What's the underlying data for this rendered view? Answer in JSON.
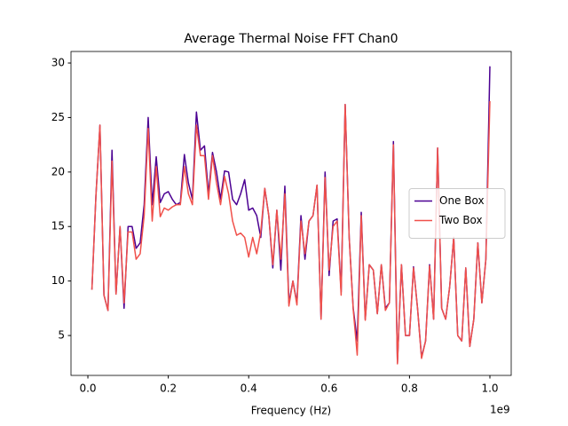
{
  "chart_data": {
    "type": "line",
    "title": "Average Thermal Noise FFT Chan0",
    "x_label": "Frequency (Hz)",
    "x_offset_label": "1e9",
    "x": [
      0.01,
      0.02,
      0.03,
      0.04,
      0.05,
      0.06,
      0.07,
      0.08,
      0.09,
      0.1,
      0.11,
      0.12,
      0.13,
      0.14,
      0.15,
      0.16,
      0.17,
      0.18,
      0.19,
      0.2,
      0.21,
      0.22,
      0.23,
      0.24,
      0.25,
      0.26,
      0.27,
      0.28,
      0.29,
      0.3,
      0.31,
      0.32,
      0.33,
      0.34,
      0.35,
      0.36,
      0.37,
      0.38,
      0.39,
      0.4,
      0.41,
      0.42,
      0.43,
      0.44,
      0.45,
      0.46,
      0.47,
      0.48,
      0.49,
      0.5,
      0.51,
      0.52,
      0.53,
      0.54,
      0.55,
      0.56,
      0.57,
      0.58,
      0.59,
      0.6,
      0.61,
      0.62,
      0.63,
      0.64,
      0.65,
      0.66,
      0.67,
      0.68,
      0.69,
      0.7,
      0.71,
      0.72,
      0.73,
      0.74,
      0.75,
      0.76,
      0.77,
      0.78,
      0.79,
      0.8,
      0.81,
      0.82,
      0.83,
      0.84,
      0.85,
      0.86,
      0.87,
      0.88,
      0.89,
      0.9,
      0.91,
      0.92,
      0.93,
      0.94,
      0.95,
      0.96,
      0.97,
      0.98,
      0.99,
      1.0
    ],
    "series": [
      {
        "name": "One Box",
        "color": "#4b0092",
        "values": [
          9.2,
          17.8,
          24.3,
          8.7,
          7.3,
          22,
          8.8,
          15,
          7.5,
          15,
          15,
          13,
          13.5,
          17,
          25,
          17,
          21.4,
          17.2,
          18,
          18.2,
          17.5,
          17,
          17.2,
          21.6,
          19,
          17.5,
          25.5,
          22,
          22.4,
          18,
          21.8,
          20,
          17.5,
          20.1,
          20,
          17.5,
          17,
          18,
          19.3,
          16.5,
          16.7,
          16,
          14,
          18.5,
          16,
          11.2,
          16.5,
          11,
          18.7,
          8,
          10,
          8,
          16,
          12,
          15.5,
          16,
          18.8,
          6.5,
          20,
          10.5,
          15.5,
          15.7,
          9,
          26.2,
          14,
          7.5,
          4.5,
          16.3,
          6.5,
          11.5,
          11,
          7,
          11.5,
          7.5,
          8,
          22.8,
          2.5,
          11.5,
          5,
          5,
          11.3,
          7.5,
          3,
          4.5,
          11.5,
          6.5,
          22.2,
          7.5,
          6.5,
          9.5,
          14,
          5,
          4.5,
          11.2,
          4,
          6.5,
          13.5,
          8,
          12,
          29.7
        ]
      },
      {
        "name": "Two Box",
        "color": "#f0504a",
        "values": [
          9.2,
          17.8,
          24.3,
          8.7,
          7.3,
          21,
          8.8,
          15,
          8,
          14.5,
          14.5,
          12,
          12.5,
          16,
          24,
          15.5,
          20.5,
          15.9,
          16.7,
          16.5,
          16.8,
          17,
          17,
          20.5,
          18,
          17,
          24.3,
          21.5,
          21.5,
          17.5,
          21.5,
          19,
          17,
          19.6,
          18,
          15.5,
          14.2,
          14.4,
          14,
          12.2,
          14,
          12.5,
          14.5,
          18.5,
          16,
          11.5,
          16.5,
          12,
          18,
          7.7,
          10,
          7.8,
          15.5,
          12.5,
          15.5,
          16,
          18.8,
          6.5,
          19.5,
          11,
          15,
          15.5,
          8.7,
          26.2,
          14,
          7.4,
          3.2,
          16,
          6.4,
          11.5,
          11,
          7,
          11.5,
          7.3,
          8,
          22.5,
          2.4,
          11.5,
          5,
          5,
          11.2,
          7.5,
          2.9,
          4.5,
          11.4,
          6.5,
          22.2,
          7.5,
          6.5,
          9.5,
          14,
          5,
          4.5,
          11.2,
          4,
          6.5,
          13.5,
          8,
          12,
          26.5
        ]
      }
    ],
    "xlim": [
      -0.042,
      1.053
    ],
    "ylim": [
      1.34,
      31.06
    ],
    "xticks": [
      {
        "value": 0,
        "label": "0.0"
      },
      0.2,
      0.4,
      0.6,
      0.8,
      {
        "value": 1,
        "label": "1.0"
      }
    ],
    "yticks": [
      5,
      10,
      15,
      20,
      25,
      30
    ],
    "grid": false,
    "legend": "center right"
  }
}
